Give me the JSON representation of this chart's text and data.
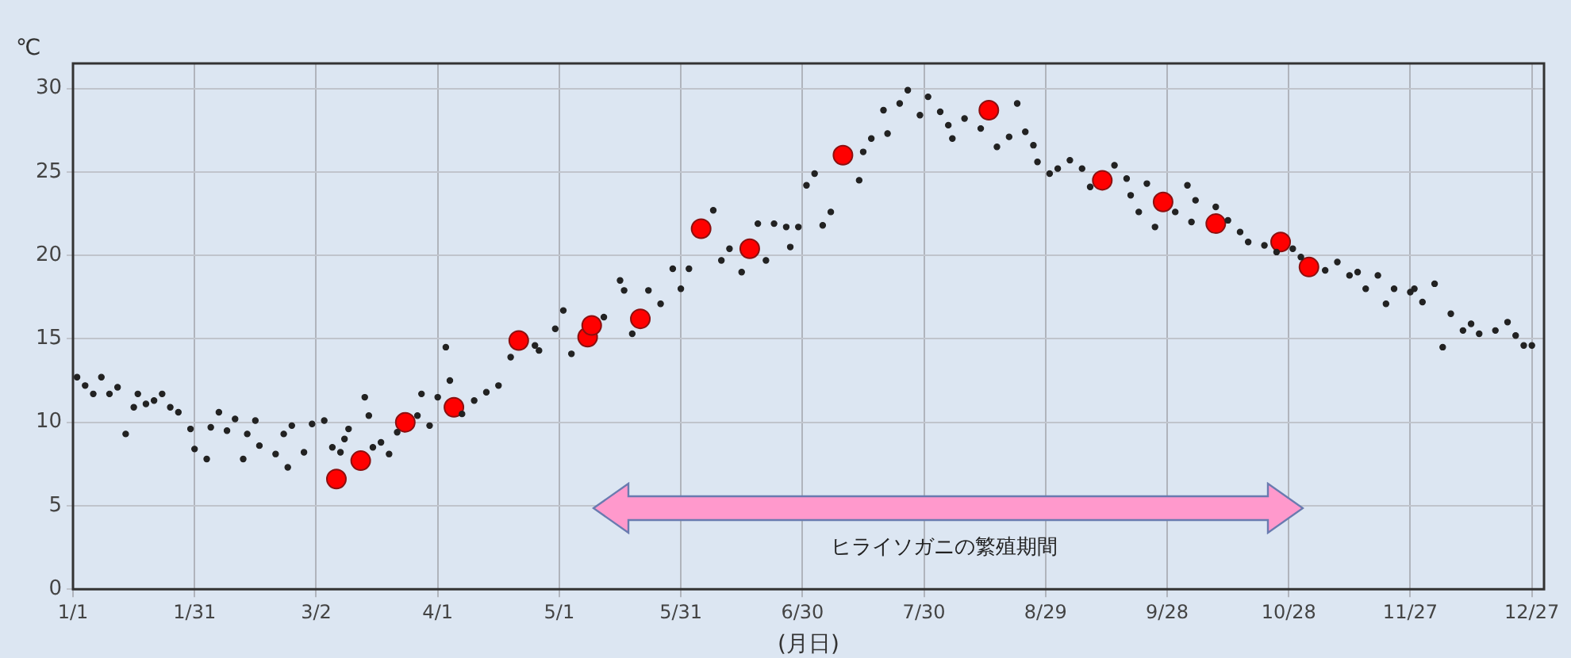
{
  "chart_data": {
    "type": "scatter",
    "ylabel": "℃",
    "xlabel": "(月日)",
    "xlim": [
      "--01-01",
      "--12-30"
    ],
    "xticks": [
      {
        "value": "--01-01",
        "label": "1/1"
      },
      {
        "value": "--01-31",
        "label": "1/31"
      },
      {
        "value": "--03-02",
        "label": "3/2"
      },
      {
        "value": "--04-01",
        "label": "4/1"
      },
      {
        "value": "--05-01",
        "label": "5/1"
      },
      {
        "value": "--05-31",
        "label": "5/31"
      },
      {
        "value": "--06-30",
        "label": "6/30"
      },
      {
        "value": "--07-30",
        "label": "7/30"
      },
      {
        "value": "--08-29",
        "label": "8/29"
      },
      {
        "value": "--09-28",
        "label": "9/28"
      },
      {
        "value": "--10-28",
        "label": "10/28"
      },
      {
        "value": "--11-27",
        "label": "11/27"
      },
      {
        "value": "--12-27",
        "label": "12/27"
      }
    ],
    "ylim": [
      0,
      31.5
    ],
    "yticks": [
      0,
      5,
      10,
      15,
      20,
      25,
      30
    ],
    "grid": true,
    "marker": "circle",
    "series": [
      {
        "color": "#222222",
        "x": [
          "--01-02",
          "--01-04",
          "--01-06",
          "--01-08",
          "--01-10",
          "--01-12",
          "--01-14",
          "--01-16",
          "--01-17",
          "--01-19",
          "--01-21",
          "--01-23",
          "--01-25",
          "--01-27",
          "--01-30",
          "--01-31",
          "--02-03",
          "--02-04",
          "--02-06",
          "--02-08",
          "--02-10",
          "--02-12",
          "--02-13",
          "--02-15",
          "--02-16",
          "--02-20",
          "--02-22",
          "--02-23",
          "--02-24",
          "--02-27",
          "--03-01",
          "--03-04",
          "--03-06",
          "--03-08",
          "--03-09",
          "--03-10",
          "--03-14",
          "--03-15",
          "--03-16",
          "--03-18",
          "--03-20",
          "--03-22",
          "--03-27",
          "--03-28",
          "--03-30",
          "--04-01",
          "--04-03",
          "--04-04",
          "--04-07",
          "--04-10",
          "--04-13",
          "--04-16",
          "--04-19",
          "--04-25",
          "--04-26",
          "--04-30",
          "--05-02",
          "--05-04",
          "--05-12",
          "--05-16",
          "--05-17",
          "--05-19",
          "--05-23",
          "--05-26",
          "--05-29",
          "--05-31",
          "--06-02",
          "--06-08",
          "--06-10",
          "--06-12",
          "--06-15",
          "--06-19",
          "--06-21",
          "--06-23",
          "--06-26",
          "--06-27",
          "--06-29",
          "--07-01",
          "--07-03",
          "--07-05",
          "--07-07",
          "--07-14",
          "--07-15",
          "--07-17",
          "--07-20",
          "--07-21",
          "--07-24",
          "--07-26",
          "--07-29",
          "--07-31",
          "--08-03",
          "--08-05",
          "--08-06",
          "--08-09",
          "--08-13",
          "--08-17",
          "--08-20",
          "--08-22",
          "--08-24",
          "--08-26",
          "--08-27",
          "--08-30",
          "--09-01",
          "--09-04",
          "--09-07",
          "--09-09",
          "--09-15",
          "--09-18",
          "--09-19",
          "--09-21",
          "--09-23",
          "--09-25",
          "--09-30",
          "--10-03",
          "--10-04",
          "--10-05",
          "--10-10",
          "--10-13",
          "--10-16",
          "--10-18",
          "--10-22",
          "--10-25",
          "--10-29",
          "--10-31",
          "--11-06",
          "--11-09",
          "--11-12",
          "--11-14",
          "--11-16",
          "--11-19",
          "--11-21",
          "--11-23",
          "--11-27",
          "--11-28",
          "--11-30",
          "--12-03",
          "--12-05",
          "--12-07",
          "--12-10",
          "--12-12",
          "--12-14",
          "--12-18",
          "--12-21",
          "--12-23",
          "--12-25",
          "--12-27"
        ],
        "values": [
          12.7,
          12.2,
          11.7,
          12.7,
          11.7,
          12.1,
          9.3,
          10.9,
          11.7,
          11.1,
          11.3,
          11.7,
          10.9,
          10.6,
          9.6,
          8.4,
          7.8,
          9.7,
          10.6,
          9.5,
          10.2,
          7.8,
          9.3,
          10.1,
          8.6,
          8.1,
          9.3,
          7.3,
          9.8,
          8.2,
          9.9,
          10.1,
          8.5,
          8.2,
          9.0,
          9.6,
          11.5,
          10.4,
          8.5,
          8.8,
          8.1,
          9.4,
          10.4,
          11.7,
          9.8,
          11.5,
          14.5,
          12.5,
          10.5,
          11.3,
          11.8,
          12.2,
          13.9,
          14.6,
          14.3,
          15.6,
          16.7,
          14.1,
          16.3,
          18.5,
          17.9,
          15.3,
          17.9,
          17.1,
          19.2,
          18.0,
          19.2,
          22.7,
          19.7,
          20.4,
          19.0,
          21.9,
          19.7,
          21.9,
          21.7,
          20.5,
          21.7,
          24.2,
          24.9,
          21.8,
          22.6,
          24.5,
          26.2,
          27.0,
          28.7,
          27.3,
          29.1,
          29.9,
          28.4,
          29.5,
          28.6,
          27.8,
          27.0,
          28.2,
          27.6,
          26.5,
          27.1,
          29.1,
          27.4,
          26.6,
          25.6,
          24.9,
          25.2,
          25.7,
          25.2,
          24.1,
          25.4,
          24.6,
          23.6,
          22.6,
          24.3,
          21.7,
          22.6,
          24.2,
          22.0,
          23.3,
          22.9,
          22.1,
          21.4,
          20.8,
          20.6,
          20.2,
          20.4,
          19.9,
          19.1,
          19.6,
          18.8,
          19.0,
          18.0,
          18.8,
          17.1,
          18.0,
          17.8,
          18.0,
          17.2,
          18.3,
          14.5,
          16.5,
          15.5,
          15.9,
          15.3,
          15.5,
          16.0,
          15.2,
          14.6,
          14.6
        ]
      },
      {
        "color": "#ff0000",
        "x": [
          "--03-07",
          "--03-13",
          "--03-24",
          "--04-05",
          "--04-21",
          "--05-08",
          "--05-09",
          "--05-21",
          "--06-05",
          "--06-17",
          "--07-10",
          "--08-15",
          "--09-12",
          "--09-27",
          "--10-10",
          "--10-26",
          "--11-02"
        ],
        "values": [
          6.6,
          7.7,
          10.0,
          10.9,
          14.9,
          15.1,
          15.8,
          16.2,
          21.6,
          20.4,
          26.0,
          28.7,
          24.5,
          23.2,
          21.9,
          20.8,
          19.3
        ]
      }
    ],
    "annotations": [
      "ヒライソガニの繁殖期間"
    ]
  }
}
